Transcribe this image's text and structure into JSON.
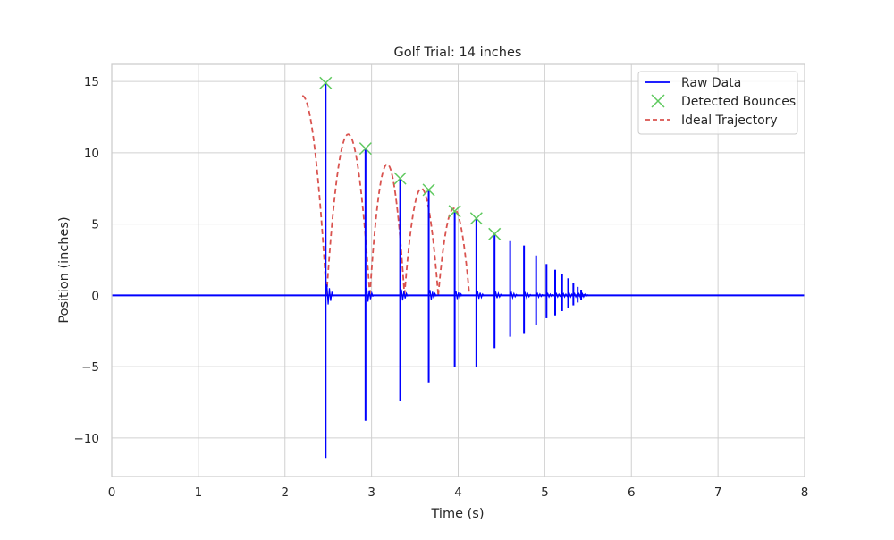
{
  "chart_data": {
    "type": "line",
    "title": "Golf Trial: 14 inches",
    "xlabel": "Time (s)",
    "ylabel": "Position (inches)",
    "xlim": [
      0,
      8
    ],
    "ylim": [
      -12.7,
      16.2
    ],
    "xticks": [
      0,
      1,
      2,
      3,
      4,
      5,
      6,
      7,
      8
    ],
    "yticks": [
      -10,
      -5,
      0,
      5,
      10,
      15
    ],
    "ytick_labels": [
      "−10",
      "−5",
      "0",
      "5",
      "10",
      "15"
    ],
    "grid": true,
    "legend_position": "top-right",
    "colors": {
      "raw": "#0000ff",
      "bounces": "#5ec95e",
      "ideal": "#d9534f",
      "grid": "#d0d0d0",
      "axes": "#cccccc"
    },
    "legend": [
      "Raw Data",
      "Detected Bounces",
      "Ideal Trajectory"
    ],
    "raw_data": {
      "name": "Raw Data",
      "baseline": [
        0,
        8
      ],
      "spikes": [
        {
          "t": 2.47,
          "peak": 14.9,
          "trough": -11.4
        },
        {
          "t": 2.93,
          "peak": 10.3,
          "trough": -8.8
        },
        {
          "t": 3.33,
          "peak": 8.2,
          "trough": -7.4
        },
        {
          "t": 3.66,
          "peak": 7.4,
          "trough": -6.1
        },
        {
          "t": 3.96,
          "peak": 5.9,
          "trough": -5.0
        },
        {
          "t": 4.21,
          "peak": 5.4,
          "trough": -5.0
        },
        {
          "t": 4.42,
          "peak": 4.3,
          "trough": -3.7
        },
        {
          "t": 4.6,
          "peak": 3.8,
          "trough": -2.9
        },
        {
          "t": 4.76,
          "peak": 3.5,
          "trough": -2.7
        },
        {
          "t": 4.9,
          "peak": 2.8,
          "trough": -2.1
        },
        {
          "t": 5.02,
          "peak": 2.2,
          "trough": -1.6
        },
        {
          "t": 5.12,
          "peak": 1.8,
          "trough": -1.4
        },
        {
          "t": 5.2,
          "peak": 1.5,
          "trough": -1.1
        },
        {
          "t": 5.27,
          "peak": 1.2,
          "trough": -0.9
        },
        {
          "t": 5.33,
          "peak": 0.9,
          "trough": -0.7
        },
        {
          "t": 5.38,
          "peak": 0.6,
          "trough": -0.5
        },
        {
          "t": 5.42,
          "peak": 0.4,
          "trough": -0.3
        }
      ]
    },
    "detected_bounces": {
      "name": "Detected Bounces",
      "x": [
        2.47,
        2.93,
        3.33,
        3.66,
        3.96,
        4.21,
        4.42
      ],
      "y": [
        14.9,
        10.3,
        8.2,
        7.4,
        5.9,
        5.4,
        4.3
      ]
    },
    "ideal_trajectory": {
      "name": "Ideal Trajectory",
      "start": {
        "t": 2.2,
        "y": 14.0
      },
      "arcs": [
        {
          "t0": 2.48,
          "t1": 2.98,
          "peak": 11.3
        },
        {
          "t0": 2.98,
          "t1": 3.38,
          "peak": 9.2
        },
        {
          "t0": 3.38,
          "t1": 3.77,
          "peak": 7.5
        },
        {
          "t0": 3.77,
          "t1": 4.13,
          "peak": 6.1
        }
      ]
    }
  }
}
